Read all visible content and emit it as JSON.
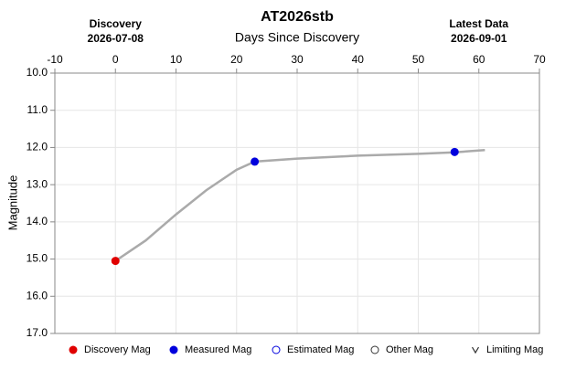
{
  "chart_data": {
    "type": "line",
    "title": "AT2026stb",
    "x_label": "Days Since Discovery",
    "y_label": "Magnitude",
    "xlim": [
      -10,
      70
    ],
    "xticks": [
      -10,
      0,
      10,
      20,
      30,
      40,
      50,
      60,
      70
    ],
    "ylim": [
      10,
      17
    ],
    "y_inverted": true,
    "yticks": [
      {
        "value": 10,
        "label": "10.0"
      },
      {
        "value": 11,
        "label": "11.0"
      },
      {
        "value": 12,
        "label": "12.0"
      },
      {
        "value": 13,
        "label": "13.0"
      },
      {
        "value": 14,
        "label": "14.0"
      },
      {
        "value": 15,
        "label": "15.0"
      },
      {
        "value": 16,
        "label": "16.0"
      },
      {
        "value": 17,
        "label": "17.0"
      }
    ],
    "grid": true,
    "annotations": [
      {
        "x": 0,
        "lines": [
          "Discovery",
          "2026-07-08"
        ]
      },
      {
        "x": 60,
        "lines": [
          "Latest Data",
          "2026-09-01"
        ]
      }
    ],
    "curve": {
      "color": "#aaaaaa",
      "x": [
        0,
        5,
        10,
        15,
        20,
        23,
        30,
        40,
        50,
        56,
        61
      ],
      "values": [
        15.05,
        14.5,
        13.8,
        13.15,
        12.6,
        12.38,
        12.3,
        12.22,
        12.17,
        12.13,
        12.07
      ]
    },
    "series": [
      {
        "name": "Discovery Mag",
        "color": "#e00000",
        "marker": "filled",
        "x": [
          0
        ],
        "values": [
          15.05
        ]
      },
      {
        "name": "Measured Mag",
        "color": "#0000dd",
        "marker": "filled",
        "x": [
          23,
          56
        ],
        "values": [
          12.38,
          12.12
        ]
      },
      {
        "name": "Estimated Mag",
        "color": "#0000dd",
        "marker": "open",
        "x": [],
        "values": []
      },
      {
        "name": "Other Mag",
        "color": "#333333",
        "marker": "open",
        "x": [],
        "values": []
      },
      {
        "name": "Limiting Mag",
        "color": "#333333",
        "marker": "v",
        "x": [],
        "values": []
      }
    ]
  }
}
